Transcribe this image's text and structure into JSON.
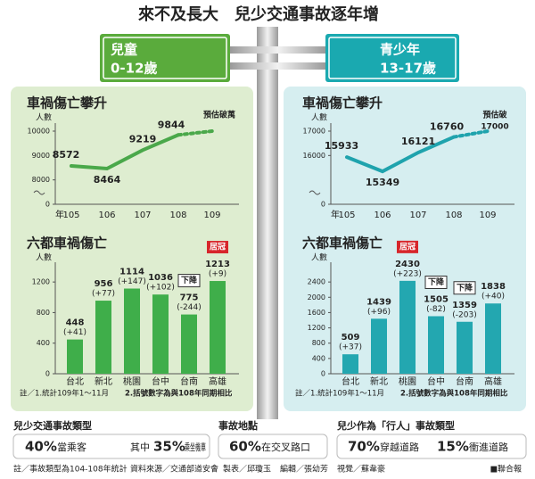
{
  "title": "來不及長大　兒少交通事故逐年增",
  "signs": [
    {
      "label": "兒童",
      "ages": "0-12歲"
    },
    {
      "label": "青少年",
      "ages": "13-17歲"
    }
  ],
  "chart_data": [
    {
      "type": "line",
      "title": "車禍傷亡攀升",
      "y_label": "人數",
      "x_label": "年",
      "categories": [
        "105",
        "106",
        "107",
        "108",
        "109"
      ],
      "series": [
        {
          "color": "#4aa84a",
          "values": [
            8572,
            8464,
            9219,
            9844,
            null
          ]
        },
        {
          "color": "#4aa84a",
          "dashed": true,
          "values": [
            null,
            null,
            null,
            9844,
            10000
          ]
        }
      ],
      "ylim": [
        7000,
        10000
      ],
      "yticks": [
        0,
        8000,
        9000,
        10000
      ],
      "y_break": true,
      "annotation": [
        "預估破萬"
      ]
    },
    {
      "type": "line",
      "title": "車禍傷亡攀升",
      "y_label": "人數",
      "x_label": "年",
      "categories": [
        "105",
        "106",
        "107",
        "108",
        "109"
      ],
      "series": [
        {
          "color": "#1fa3ad",
          "values": [
            15933,
            15349,
            16121,
            16760,
            null
          ]
        },
        {
          "color": "#1fa3ad",
          "dashed": true,
          "values": [
            null,
            null,
            null,
            16760,
            17000
          ]
        }
      ],
      "ylim": [
        14000,
        17000
      ],
      "yticks": [
        0,
        16000,
        17000
      ],
      "y_break": true,
      "annotation": [
        "預估破",
        "17000"
      ]
    },
    {
      "type": "bar",
      "title": "六都車禍傷亡",
      "y_label": "人數",
      "categories": [
        "台北",
        "新北",
        "桃園",
        "台中",
        "台南",
        "高雄"
      ],
      "values": [
        448,
        956,
        1114,
        1036,
        775,
        1213
      ],
      "change_labels": [
        "(+41)",
        "(+77)",
        "(+147)",
        "(+102)",
        "(-244)",
        "(+9)"
      ],
      "color": "#3fae4a",
      "ylim": [
        0,
        1400
      ],
      "yticks": [
        0,
        400,
        800,
        1200
      ],
      "badges": [
        {
          "label": "居冠",
          "category": "高雄",
          "style": "filled"
        },
        {
          "label": "下降",
          "category": "台南",
          "style": "outline"
        }
      ],
      "notes": [
        "註／1.統計109年1～11月",
        "2.括號數字為與108年同期相比"
      ]
    },
    {
      "type": "bar",
      "title": "六都車禍傷亡",
      "y_label": "人數",
      "categories": [
        "台北",
        "新北",
        "桃園",
        "台中",
        "台南",
        "高雄"
      ],
      "values": [
        509,
        1439,
        2430,
        1505,
        1359,
        1838
      ],
      "change_labels": [
        "(+37)",
        "(+96)",
        "(+223)",
        "(-82)",
        "(-203)",
        "(+40)"
      ],
      "color": "#23a7b0",
      "ylim": [
        0,
        2800
      ],
      "yticks": [
        0,
        400,
        800,
        1200,
        1600,
        2000,
        2400
      ],
      "badges": [
        {
          "label": "居冠",
          "category": "桃園",
          "style": "filled"
        },
        {
          "label": "下降",
          "category": "台中",
          "style": "outline"
        },
        {
          "label": "下降",
          "category": "台南",
          "style": "outline"
        }
      ],
      "notes": [
        "註／1.統計109年1～11月",
        "2.括號數字為與108年同期相比"
      ]
    }
  ],
  "summary": [
    {
      "heading": "兒少交通事故類型",
      "items": [
        {
          "value": "40%",
          "text": "當乘客"
        },
        {
          "prefix": "其中",
          "value": "35%",
          "text": "乘坐機車"
        }
      ]
    },
    {
      "heading": "事故地點",
      "items": [
        {
          "value": "60%",
          "text": "在交叉路口"
        }
      ]
    },
    {
      "heading": "兒少作為「行人」事故類型",
      "items": [
        {
          "value": "70%",
          "text": "穿越道路"
        },
        {
          "value": "15%",
          "text": "衝進道路"
        }
      ]
    }
  ],
  "footer": [
    "註／事故類型為104-108年統計",
    "資料來源／交通部道安會",
    "製表／邱瓊玉",
    "編輯／張幼芳",
    "視覺／蘇韋豪",
    "■聯合報"
  ]
}
